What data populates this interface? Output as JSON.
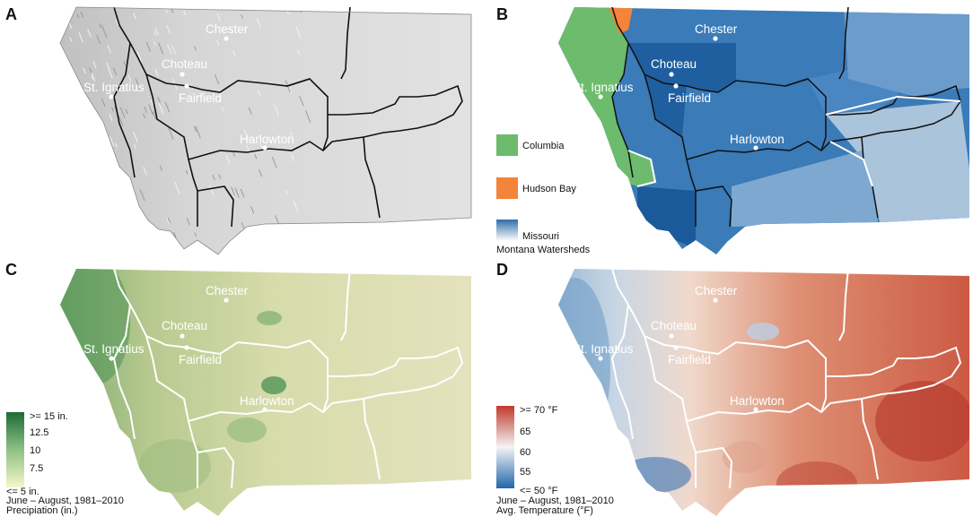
{
  "panels": [
    {
      "id": "A",
      "letter": "A",
      "theme": "relief"
    },
    {
      "id": "B",
      "letter": "B",
      "theme": "watersheds"
    },
    {
      "id": "C",
      "letter": "C",
      "theme": "precipitation"
    },
    {
      "id": "D",
      "letter": "D",
      "theme": "temperature"
    }
  ],
  "cities": {
    "chester": "Chester",
    "choteau": "Choteau",
    "st_ignatius": "St. Ignatius",
    "fairfield": "Fairfield",
    "harlowton": "Harlowton"
  },
  "legend_b": {
    "items": [
      "Columbia",
      "Hudson Bay",
      "Missouri"
    ],
    "title": "Montana Watersheds",
    "colors": {
      "columbia": "#6dbb6d",
      "hudson_bay": "#f4843a",
      "missouri": "#2f6eaa"
    }
  },
  "legend_c": {
    "ticks": [
      ">= 15 in.",
      "12.5",
      "10",
      "7.5",
      "<= 5 in."
    ],
    "caption_line1": "June – August, 1981–2010",
    "caption_line2": "Precipiation (in.)",
    "colors": {
      "high": "#1d6b37",
      "low": "#f3f7c9"
    }
  },
  "legend_d": {
    "ticks": [
      ">= 70 °F",
      "65",
      "60",
      "55",
      "<= 50 °F"
    ],
    "caption_line1": "June – August, 1981–2010",
    "caption_line2": "Avg. Temperature (°F)",
    "colors": {
      "high": "#c0392b",
      "mid": "#f4f4f4",
      "low": "#2166ac"
    }
  }
}
